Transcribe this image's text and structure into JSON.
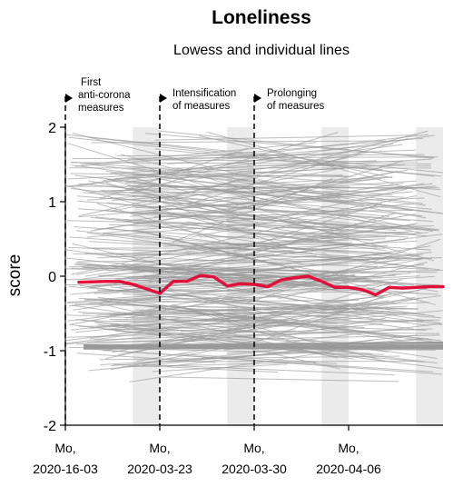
{
  "chart_data": {
    "type": "line",
    "title": "Loneliness",
    "subtitle": "Lowess and individual lines",
    "ylabel": "score",
    "xlabel": "",
    "ylim": [
      -2,
      2
    ],
    "yticks": [
      "2",
      "1",
      "0",
      "-1",
      "-2"
    ],
    "ytick_values": [
      2,
      1,
      0,
      -1,
      -2
    ],
    "xlim": [
      "2020-03-16",
      "2020-04-13"
    ],
    "xticks": [
      {
        "line1": "Mo,",
        "line2": "2020-16-03",
        "date": "2020-03-16"
      },
      {
        "line1": "Mo,",
        "line2": "2020-03-23",
        "date": "2020-03-23"
      },
      {
        "line1": "Mo,",
        "line2": "2020-03-30",
        "date": "2020-03-30"
      },
      {
        "line1": "Mo,",
        "line2": "2020-04-06",
        "date": "2020-04-06"
      }
    ],
    "weekend_shading": [
      [
        "2020-03-21",
        "2020-03-23"
      ],
      [
        "2020-03-28",
        "2020-03-30"
      ],
      [
        "2020-04-04",
        "2020-04-06"
      ],
      [
        "2020-04-11",
        "2020-04-13"
      ]
    ],
    "annotations": [
      {
        "date": "2020-03-16",
        "lines": [
          "First",
          "anti-corona",
          "measures"
        ]
      },
      {
        "date": "2020-03-23",
        "lines": [
          "Intensification",
          "of measures"
        ]
      },
      {
        "date": "2020-03-30",
        "lines": [
          "Prolonging",
          "of measures"
        ]
      }
    ],
    "series": [
      {
        "color": "#e0113a",
        "x": [
          "2020-03-17",
          "2020-03-19",
          "2020-03-20",
          "2020-03-21",
          "2020-03-22",
          "2020-03-23",
          "2020-03-24",
          "2020-03-25",
          "2020-03-26",
          "2020-03-27",
          "2020-03-28",
          "2020-03-29",
          "2020-03-30",
          "2020-03-31",
          "2020-04-01",
          "2020-04-02",
          "2020-04-03",
          "2020-04-04",
          "2020-04-05",
          "2020-04-06",
          "2020-04-07",
          "2020-04-08",
          "2020-04-09",
          "2020-04-10",
          "2020-04-11",
          "2020-04-12",
          "2020-04-13"
        ],
        "y": [
          -0.08,
          -0.07,
          -0.07,
          -0.11,
          -0.17,
          -0.23,
          -0.07,
          -0.07,
          0.01,
          -0.01,
          -0.13,
          -0.1,
          -0.11,
          -0.14,
          -0.05,
          -0.02,
          0.0,
          -0.07,
          -0.15,
          -0.15,
          -0.18,
          -0.25,
          -0.15,
          -0.16,
          -0.15,
          -0.14,
          -0.14
        ]
      }
    ],
    "individual_lines": {
      "color": "#9a9a9a",
      "x_range": [
        "2020-03-16",
        "2020-04-13"
      ],
      "y_range": [
        -1.5,
        1.9
      ],
      "count": 300
    }
  }
}
